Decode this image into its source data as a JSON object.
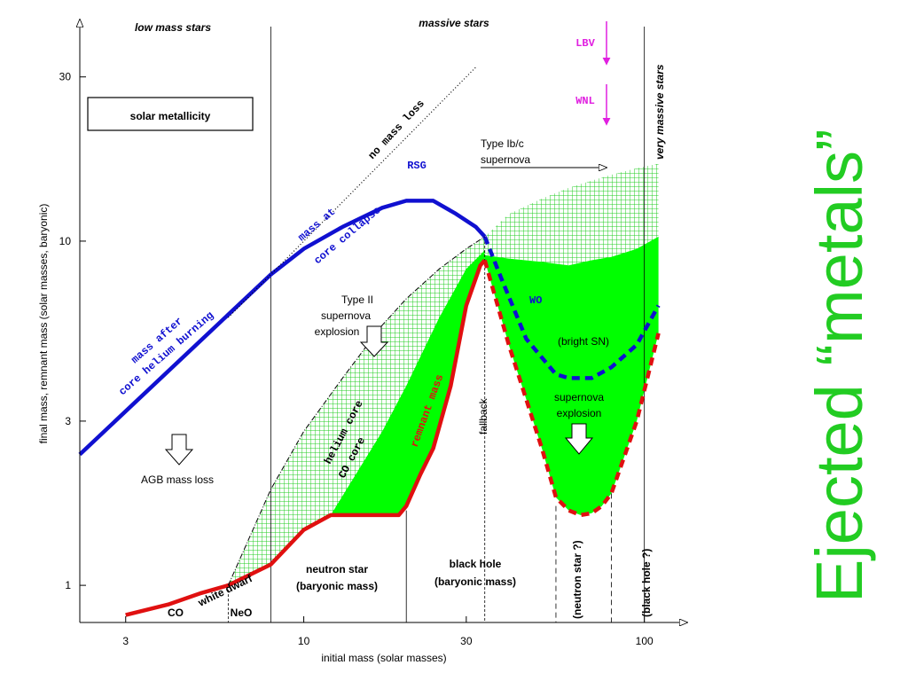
{
  "chart_data": {
    "type": "line",
    "xlabel": "initial mass (solar masses)",
    "ylabel": "final mass, remnant mass (solar masses, baryonic)",
    "x_scale": "log",
    "y_scale": "log",
    "xlim": [
      2.2,
      115
    ],
    "ylim": [
      0.78,
      42
    ],
    "x_ticks": [
      3,
      10,
      30,
      100
    ],
    "y_ticks": [
      1,
      3,
      10,
      30
    ],
    "x_tick_labels": [
      "3",
      "10",
      "30",
      "100"
    ],
    "y_tick_labels": [
      "1",
      "3",
      "10",
      "30"
    ],
    "series": [
      {
        "name": "mass after core helium burning",
        "color": "#1010d0",
        "style": "solid",
        "x": [
          2.2,
          8,
          10,
          13,
          17,
          20,
          24,
          28,
          32,
          34
        ],
        "y": [
          2.4,
          8.0,
          9.5,
          11.0,
          12.5,
          13.1,
          13.1,
          12.0,
          11.0,
          10.3
        ]
      },
      {
        "name": "WO",
        "color": "#1010d0",
        "style": "dashed",
        "x": [
          34,
          38,
          45,
          55,
          60,
          70,
          80,
          95,
          110
        ],
        "y": [
          10.3,
          7.8,
          5.2,
          4.1,
          4.0,
          4.0,
          4.3,
          5.0,
          6.5
        ]
      },
      {
        "name": "remnant mass",
        "color": "#e01010",
        "style": "solid",
        "x": [
          3,
          4,
          5,
          6,
          8,
          10,
          12,
          19,
          20,
          22,
          24,
          27,
          30,
          33,
          34
        ],
        "y": [
          0.82,
          0.88,
          0.95,
          1.0,
          1.15,
          1.45,
          1.6,
          1.6,
          1.7,
          2.1,
          2.5,
          3.8,
          6.5,
          8.5,
          8.8
        ]
      },
      {
        "name": "remnant mass (dashed)",
        "color": "#e01010",
        "style": "dashed",
        "x": [
          34,
          40,
          50,
          55,
          60,
          65,
          70,
          75,
          80,
          95,
          110
        ],
        "y": [
          8.8,
          5.0,
          2.5,
          1.8,
          1.65,
          1.6,
          1.62,
          1.7,
          1.85,
          3.0,
          5.4
        ]
      },
      {
        "name": "helium core",
        "color": "#000000",
        "style": "dashdot",
        "x": [
          6,
          8,
          10,
          13,
          17,
          20,
          25,
          30,
          34
        ],
        "y": [
          1.0,
          1.9,
          2.8,
          4.0,
          5.7,
          6.8,
          8.3,
          9.5,
          10.3
        ]
      },
      {
        "name": "no mass loss",
        "color": "#000000",
        "style": "dotted",
        "x": [
          6,
          32
        ],
        "y": [
          6.0,
          32.0
        ]
      }
    ],
    "regions": [
      {
        "name": "helium core region",
        "fill": "hatch-green"
      },
      {
        "name": "CO core region",
        "fill": "#00ff00"
      },
      {
        "name": "Type Ib/c region",
        "fill": "hatch-green"
      }
    ],
    "zone_boundaries_x": [
      8,
      20,
      34,
      50,
      80,
      100
    ],
    "zone_boundaries_x_note": "",
    "annotations": {
      "low_mass_stars": "low mass stars",
      "massive_stars": "massive stars",
      "very_massive_stars": "very massive stars",
      "solar_metallicity": "solar metallicity",
      "no_mass_loss": "no mass loss",
      "rsg": "RSG",
      "mass_at_core_collapse_1": "mass at",
      "mass_at_core_collapse_2": "core collapse",
      "mass_after_1": "mass after",
      "mass_after_2": "core helium burning",
      "lbv": "LBV",
      "wnl": "WNL",
      "type_ibc_1": "Type Ib/c",
      "type_ibc_2": "supernova",
      "type_ii_1": "Type II",
      "type_ii_2": "supernova",
      "type_ii_3": "explosion",
      "wo": "WO",
      "bright_sn": "(bright SN)",
      "sn_exp_1": "supernova",
      "sn_exp_2": "explosion",
      "helium_core": "helium core",
      "co_core": "CO core",
      "remnant_mass": "remnant mass",
      "fallback": "fallback",
      "agb": "AGB mass loss",
      "white_dwarf": "white dwarf",
      "co": "CO",
      "neo": "NeO",
      "ns_1": "neutron star",
      "ns_2": "(baryonic mass)",
      "bh_1": "black hole",
      "bh_2": "(baryonic mass)",
      "ns_q": "(neutron star ?)",
      "bh_q": "(black hole ?)"
    }
  },
  "side_title": "Ejected “metals”",
  "colors": {
    "blue": "#1010d0",
    "red": "#e01010",
    "green": "#00ff00",
    "magenta": "#e020e0",
    "side_title": "#22cc22"
  }
}
